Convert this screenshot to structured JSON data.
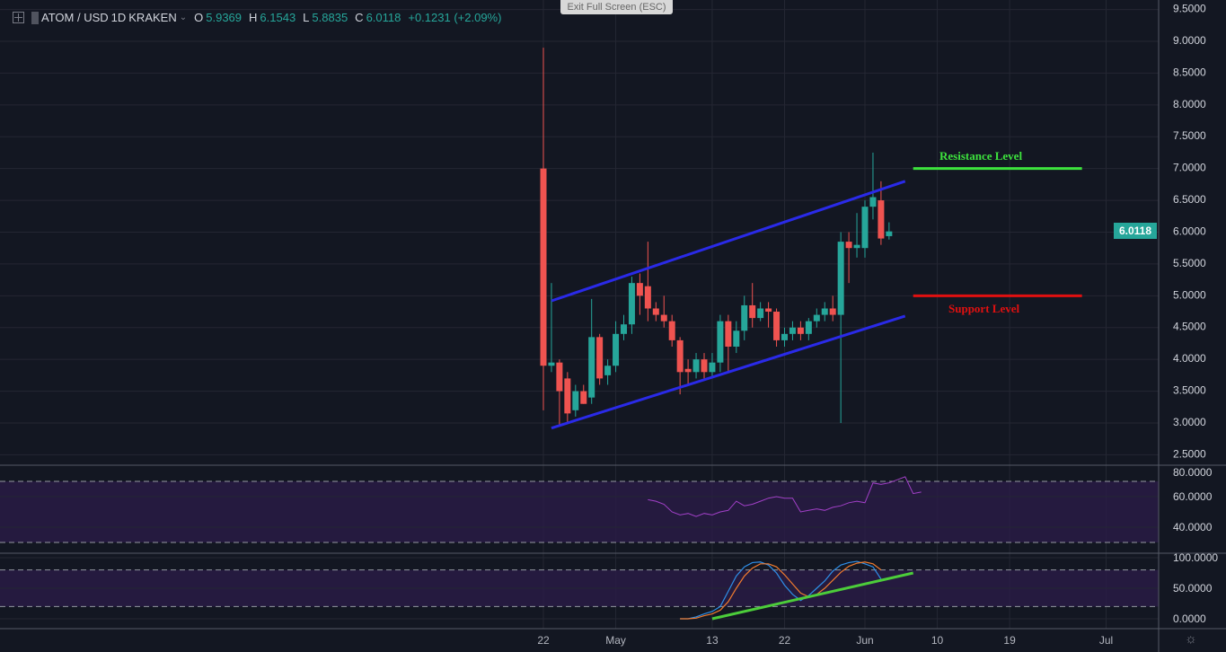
{
  "header": {
    "symbol": "ATOM / USD",
    "interval": "1D",
    "exchange": "KRAKEN",
    "o_label": "O",
    "o": "5.9369",
    "h_label": "H",
    "h": "6.1543",
    "l_label": "L",
    "l": "5.8835",
    "c_label": "C",
    "c": "6.0118",
    "change": "+0.1231 (+2.09%)"
  },
  "exit_fullscreen": "Exit Full Screen (ESC)",
  "last_price": "6.0118",
  "annotations": {
    "resistance": "Resistance Level",
    "support": "Support Level"
  },
  "colors": {
    "up": "#26a69a",
    "down": "#ef5350",
    "background": "#131722",
    "grid": "#242733",
    "channel": "#2a2ae8",
    "resistance": "#3de23d",
    "support": "#e01010",
    "rsi_line": "#a240c8",
    "stoch_k": "#2f8fe8",
    "stoch_d": "#f07b2f",
    "stoch_trend": "#4ccd3a",
    "band": "#2b1c47"
  },
  "chart_data": [
    {
      "type": "candlestick",
      "ylim": [
        2.5,
        9.5
      ],
      "y_ticks": [
        "2.5000",
        "3.0000",
        "3.5000",
        "4.0000",
        "4.5000",
        "5.0000",
        "5.5000",
        "6.0000",
        "6.5000",
        "7.0000",
        "7.5000",
        "8.0000",
        "8.5000",
        "9.0000",
        "9.5000"
      ],
      "x_ticks": [
        {
          "date": "2019-04-22",
          "label": "22"
        },
        {
          "date": "2019-05-01",
          "label": "May"
        },
        {
          "date": "2019-05-13",
          "label": "13"
        },
        {
          "date": "2019-05-22",
          "label": "22"
        },
        {
          "date": "2019-06-01",
          "label": "Jun"
        },
        {
          "date": "2019-06-10",
          "label": "10"
        },
        {
          "date": "2019-06-19",
          "label": "19"
        },
        {
          "date": "2019-07-01",
          "label": "Jul"
        }
      ],
      "candles_start": "2019-04-22",
      "candles": [
        [
          7.0,
          8.9,
          3.2,
          3.9
        ],
        [
          3.9,
          5.2,
          3.8,
          3.95
        ],
        [
          3.95,
          4.0,
          2.95,
          3.5
        ],
        [
          3.7,
          3.8,
          3.0,
          3.15
        ],
        [
          3.2,
          3.6,
          3.1,
          3.5
        ],
        [
          3.5,
          3.6,
          3.3,
          3.3
        ],
        [
          3.4,
          4.95,
          3.3,
          4.35
        ],
        [
          4.35,
          4.4,
          3.6,
          3.7
        ],
        [
          3.75,
          4.0,
          3.6,
          3.9
        ],
        [
          3.9,
          4.6,
          3.8,
          4.4
        ],
        [
          4.4,
          4.7,
          4.3,
          4.55
        ],
        [
          4.55,
          5.3,
          4.4,
          5.2
        ],
        [
          5.2,
          5.35,
          4.7,
          5.0
        ],
        [
          5.15,
          5.85,
          4.6,
          4.8
        ],
        [
          4.8,
          4.9,
          4.6,
          4.7
        ],
        [
          4.7,
          5.0,
          4.5,
          4.6
        ],
        [
          4.6,
          4.7,
          4.2,
          4.3
        ],
        [
          4.3,
          4.35,
          3.45,
          3.8
        ],
        [
          3.85,
          4.0,
          3.6,
          3.8
        ],
        [
          3.8,
          4.1,
          3.7,
          4.0
        ],
        [
          4.0,
          4.1,
          3.7,
          3.8
        ],
        [
          3.8,
          4.1,
          3.7,
          3.95
        ],
        [
          3.95,
          4.7,
          3.8,
          4.6
        ],
        [
          4.6,
          4.7,
          3.8,
          4.2
        ],
        [
          4.2,
          4.6,
          4.1,
          4.45
        ],
        [
          4.45,
          5.0,
          4.3,
          4.85
        ],
        [
          4.85,
          5.2,
          4.5,
          4.65
        ],
        [
          4.65,
          4.9,
          4.6,
          4.8
        ],
        [
          4.8,
          4.9,
          4.5,
          4.75
        ],
        [
          4.75,
          4.8,
          4.2,
          4.3
        ],
        [
          4.3,
          4.5,
          4.2,
          4.4
        ],
        [
          4.4,
          4.6,
          4.3,
          4.5
        ],
        [
          4.5,
          4.6,
          4.3,
          4.4
        ],
        [
          4.4,
          4.65,
          4.3,
          4.6
        ],
        [
          4.6,
          4.8,
          4.5,
          4.7
        ],
        [
          4.7,
          4.9,
          4.6,
          4.8
        ],
        [
          4.8,
          5.0,
          4.6,
          4.7
        ],
        [
          4.7,
          6.0,
          3.0,
          5.85
        ],
        [
          5.85,
          6.0,
          5.2,
          5.75
        ],
        [
          5.75,
          6.3,
          5.6,
          5.8
        ],
        [
          5.75,
          6.5,
          5.6,
          6.4
        ],
        [
          6.4,
          7.25,
          6.2,
          6.55
        ],
        [
          6.5,
          6.8,
          5.8,
          5.9
        ],
        [
          5.9369,
          6.1543,
          5.8835,
          6.0118
        ]
      ],
      "drawings": [
        {
          "kind": "channel-upper",
          "from": [
            "2019-04-23",
            4.92
          ],
          "to": [
            "2019-06-06",
            6.8
          ]
        },
        {
          "kind": "channel-lower",
          "from": [
            "2019-04-23",
            2.92
          ],
          "to": [
            "2019-06-06",
            4.68
          ]
        },
        {
          "kind": "resistance",
          "from": [
            "2019-06-07",
            7.0
          ],
          "to": [
            "2019-06-28",
            7.0
          ]
        },
        {
          "kind": "support",
          "from": [
            "2019-06-07",
            5.0
          ],
          "to": [
            "2019-06-28",
            5.0
          ]
        }
      ]
    },
    {
      "type": "line",
      "indicator": "RSI",
      "ylim": [
        24,
        80
      ],
      "y_ticks": [
        "40.0000",
        "60.0000",
        "80.0000"
      ],
      "bands": [
        30,
        70
      ],
      "start": "2019-05-05",
      "values": [
        58,
        57,
        55,
        50,
        48,
        49,
        47,
        49,
        48,
        50,
        51,
        57,
        54,
        55,
        57,
        59,
        60,
        59,
        59,
        50,
        51,
        52,
        51,
        53,
        54,
        56,
        57,
        56,
        69,
        68,
        69,
        71,
        73,
        62,
        63
      ]
    },
    {
      "type": "line",
      "indicator": "Stochastic",
      "ylim": [
        -5,
        105
      ],
      "y_ticks": [
        "0.0000",
        "50.0000",
        "100.0000"
      ],
      "bands": [
        20,
        80
      ],
      "start": "2019-05-09",
      "series": [
        {
          "values": [
            0,
            0,
            3,
            8,
            12,
            20,
            45,
            70,
            85,
            92,
            93,
            88,
            75,
            55,
            40,
            30,
            38,
            50,
            62,
            78,
            88,
            92,
            94,
            90,
            85,
            65
          ]
        },
        {
          "values": [
            0,
            0,
            1,
            5,
            8,
            14,
            28,
            50,
            70,
            83,
            90,
            90,
            85,
            72,
            57,
            42,
            36,
            40,
            50,
            63,
            76,
            86,
            91,
            93,
            90,
            80
          ]
        }
      ],
      "trendline": {
        "from": [
          "2019-05-13",
          0
        ],
        "to": [
          "2019-06-07",
          75
        ]
      }
    }
  ]
}
